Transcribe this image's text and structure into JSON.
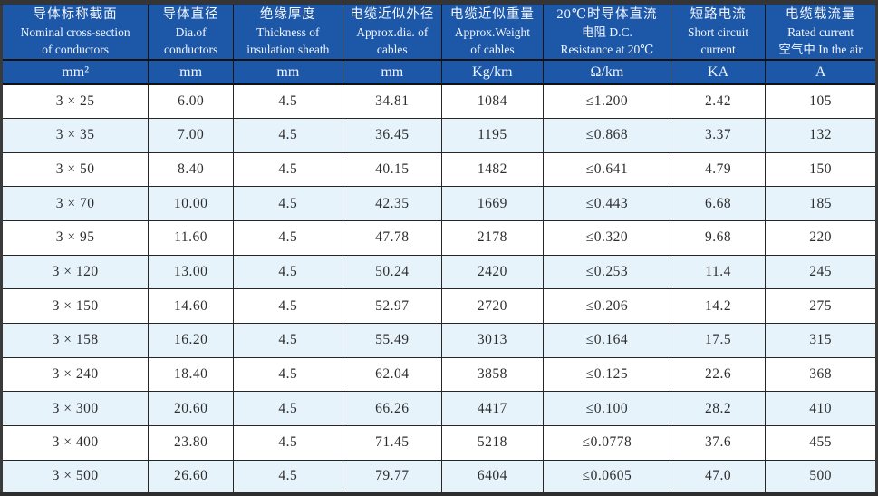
{
  "colors": {
    "header_blue": "#1c57a8",
    "header_text": "#f2f6fc",
    "alt_row_blue": "#e7f3fb",
    "grid_line": "#262626",
    "frame": "#353535",
    "data_text": "#2d2d2d"
  },
  "table": {
    "columns": [
      {
        "key": "cross-section",
        "lines": [
          "导体标称截面",
          "Nominal cross-section",
          "of conductors"
        ],
        "unit": "mm²"
      },
      {
        "key": "conductor-dia",
        "lines": [
          "导体直径",
          "Dia.of",
          "conductors"
        ],
        "unit": "mm"
      },
      {
        "key": "insulation",
        "lines": [
          "绝缘厚度",
          "Thickness of",
          "insulation sheath"
        ],
        "unit": "mm"
      },
      {
        "key": "approx-dia",
        "lines": [
          "电缆近似外径",
          "Approx.dia. of",
          "cables"
        ],
        "unit": "mm"
      },
      {
        "key": "approx-weight",
        "lines": [
          "电缆近似重量",
          "Approx.Weight",
          "of cables"
        ],
        "unit": "Kg/km"
      },
      {
        "key": "dc-resistance",
        "lines": [
          "20℃时导体直流",
          "电阻 D.C.",
          "Resistance at 20℃"
        ],
        "unit": "Ω/km"
      },
      {
        "key": "short-circuit",
        "lines": [
          "短路电流",
          "Short circuit",
          "current"
        ],
        "unit": "KA"
      },
      {
        "key": "rated-current",
        "lines": [
          "电缆载流量",
          "Rated current",
          "空气中 In the air"
        ],
        "unit": "A"
      }
    ],
    "rows": [
      [
        "3 × 25",
        "6.00",
        "4.5",
        "34.81",
        "1084",
        "≤1.200",
        "2.42",
        "105"
      ],
      [
        "3 × 35",
        "7.00",
        "4.5",
        "36.45",
        "1195",
        "≤0.868",
        "3.37",
        "132"
      ],
      [
        "3 × 50",
        "8.40",
        "4.5",
        "40.15",
        "1482",
        "≤0.641",
        "4.79",
        "150"
      ],
      [
        "3 × 70",
        "10.00",
        "4.5",
        "42.35",
        "1669",
        "≤0.443",
        "6.68",
        "185"
      ],
      [
        "3 × 95",
        "11.60",
        "4.5",
        "47.78",
        "2178",
        "≤0.320",
        "9.68",
        "220"
      ],
      [
        "3 × 120",
        "13.00",
        "4.5",
        "50.24",
        "2420",
        "≤0.253",
        "11.4",
        "245"
      ],
      [
        "3 × 150",
        "14.60",
        "4.5",
        "52.97",
        "2720",
        "≤0.206",
        "14.2",
        "275"
      ],
      [
        "3 × 158",
        "16.20",
        "4.5",
        "55.49",
        "3013",
        "≤0.164",
        "17.5",
        "315"
      ],
      [
        "3 × 240",
        "18.40",
        "4.5",
        "62.04",
        "3858",
        "≤0.125",
        "22.6",
        "368"
      ],
      [
        "3 × 300",
        "20.60",
        "4.5",
        "66.26",
        "4417",
        "≤0.100",
        "28.2",
        "410"
      ],
      [
        "3 × 400",
        "23.80",
        "4.5",
        "71.45",
        "5218",
        "≤0.0778",
        "37.6",
        "455"
      ],
      [
        "3 × 500",
        "26.60",
        "4.5",
        "79.77",
        "6404",
        "≤0.0605",
        "47.0",
        "500"
      ]
    ]
  }
}
